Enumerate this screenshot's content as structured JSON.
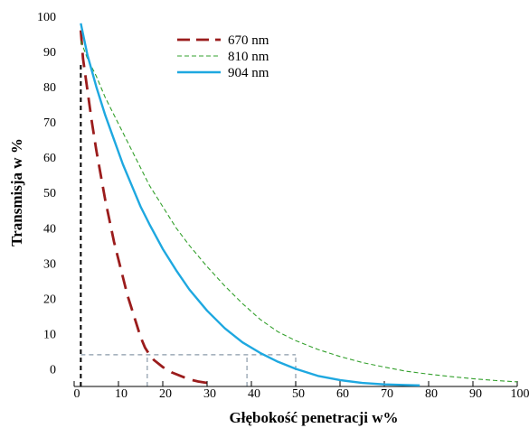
{
  "chart_data": {
    "type": "line",
    "title": "",
    "xlabel": "Głębokość penetracji w%",
    "ylabel": "Transmisja w %",
    "xlim": [
      0,
      100
    ],
    "ylim": [
      -5,
      100
    ],
    "xticks": [
      "0",
      "10",
      "20",
      "30",
      "40",
      "50",
      "60",
      "70",
      "80",
      "90",
      "100"
    ],
    "yticks": [
      "0",
      "10",
      "20",
      "30",
      "40",
      "50",
      "60",
      "70",
      "80",
      "90",
      "100"
    ],
    "legend_position": "top-left",
    "grid": false,
    "series": [
      {
        "name": "670 nm",
        "color": "#9b1c1c",
        "dash": "long-dash",
        "x": [
          1.5,
          2,
          3,
          4,
          5,
          6,
          7,
          8,
          9,
          10,
          11,
          12,
          13,
          14,
          15,
          16,
          17,
          18,
          20,
          22,
          24,
          26,
          28,
          30
        ],
        "y": [
          96,
          88,
          79,
          70,
          62,
          55,
          48,
          42,
          36,
          31,
          26,
          21,
          17,
          13,
          9,
          6,
          4,
          2.5,
          0.5,
          -1,
          -2,
          -3,
          -3.6,
          -4
        ]
      },
      {
        "name": "810 nm",
        "color": "#33a02c",
        "dash": "short-dash",
        "x": [
          1.5,
          3,
          5,
          7,
          9,
          11,
          13,
          15,
          17,
          20,
          23,
          26,
          30,
          34,
          38,
          42,
          46,
          50,
          55,
          60,
          65,
          70,
          75,
          80,
          85,
          90,
          95,
          100
        ],
        "y": [
          93,
          88,
          83,
          77,
          72,
          67,
          62,
          57,
          52,
          46,
          40,
          35,
          29,
          23.5,
          18.5,
          14,
          10.5,
          8,
          5.5,
          3.5,
          1.8,
          0.5,
          -0.7,
          -1.5,
          -2.2,
          -2.8,
          -3.3,
          -3.7
        ]
      },
      {
        "name": "904 nm",
        "color": "#1ea8e0",
        "dash": "solid",
        "x": [
          1.5,
          3,
          5,
          7,
          9,
          11,
          13,
          15,
          17,
          20,
          23,
          26,
          30,
          34,
          38,
          42,
          46,
          50,
          55,
          60,
          65,
          70,
          75,
          78
        ],
        "y": [
          98,
          89,
          80,
          72,
          65,
          58,
          52,
          46,
          41,
          34,
          28,
          22.5,
          16.5,
          11.5,
          7.5,
          4.5,
          2,
          0,
          -2,
          -3.2,
          -4,
          -4.4,
          -4.6,
          -4.7
        ]
      }
    ],
    "reference_lines": [
      {
        "type": "vertical",
        "x": 1.5,
        "y_top": 87,
        "color": "#000000",
        "dash": "dashed"
      },
      {
        "type": "horizontal",
        "y": 4,
        "x_from": 1.5,
        "x_to": 50,
        "color": "#8a9aa8",
        "dash": "dashed"
      },
      {
        "type": "vertical",
        "x": 16.5,
        "y_top": 4,
        "color": "#8a9aa8",
        "dash": "dashed"
      },
      {
        "type": "vertical",
        "x": 39,
        "y_top": 4,
        "color": "#8a9aa8",
        "dash": "dashed"
      },
      {
        "type": "vertical",
        "x": 50,
        "y_top": 4,
        "color": "#8a9aa8",
        "dash": "dashed"
      }
    ]
  }
}
